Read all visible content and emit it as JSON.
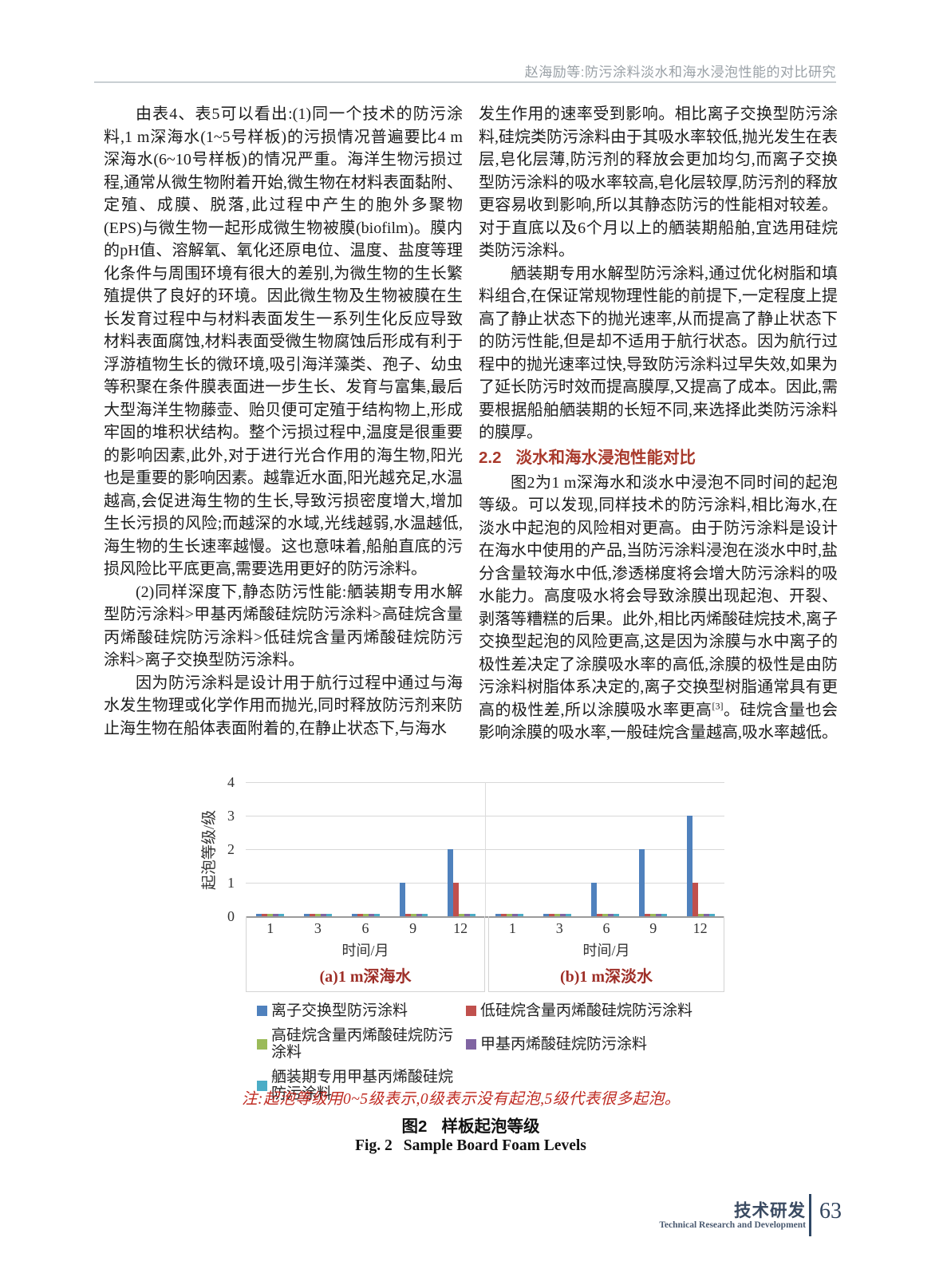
{
  "header": {
    "running_title": "赵海励等:防污涂料淡水和海水浸泡性能的对比研究"
  },
  "columns": {
    "left": {
      "para1": "由表4、表5可以看出:(1)同一个技术的防污涂料,1 m深海水(1~5号样板)的污损情况普遍要比4 m深海水(6~10号样板)的情况严重。海洋生物污损过程,通常从微生物附着开始,微生物在材料表面黏附、定殖、成膜、脱落,此过程中产生的胞外多聚物(EPS)与微生物一起形成微生物被膜(biofilm)。膜内的pH值、溶解氧、氧化还原电位、温度、盐度等理化条件与周围环境有很大的差别,为微生物的生长繁殖提供了良好的环境。因此微生物及生物被膜在生长发育过程中与材料表面发生一系列生化反应导致材料表面腐蚀,材料表面受微生物腐蚀后形成有利于浮游植物生长的微环境,吸引海洋藻类、孢子、幼虫等积聚在条件膜表面进一步生长、发育与富集,最后大型海洋生物藤壶、贻贝便可定殖于结构物上,形成牢固的堆积状结构。整个污损过程中,温度是很重要的影响因素,此外,对于进行光合作用的海生物,阳光也是重要的影响因素。越靠近水面,阳光越充足,水温越高,会促进海生物的生长,导致污损密度增大,增加生长污损的风险;而越深的水域,光线越弱,水温越低,海生物的生长速率越慢。这也意味着,船舶直底的污损风险比平底更高,需要选用更好的防污涂料。",
      "para2": "(2)同样深度下,静态防污性能:舾装期专用水解型防污涂料>甲基丙烯酸硅烷防污涂料>高硅烷含量丙烯酸硅烷防污涂料>低硅烷含量丙烯酸硅烷防污涂料>离子交换型防污涂料。",
      "para3": "因为防污涂料是设计用于航行过程中通过与海水发生物理或化学作用而抛光,同时释放防污剂来防止海生物在船体表面附着的,在静止状态下,与海水"
    },
    "right": {
      "para1": "发生作用的速率受到影响。相比离子交换型防污涂料,硅烷类防污涂料由于其吸水率较低,抛光发生在表层,皂化层薄,防污剂的释放会更加均匀,而离子交换型防污涂料的吸水率较高,皂化层较厚,防污剂的释放更容易收到影响,所以其静态防污的性能相对较差。对于直底以及6个月以上的舾装期船舶,宜选用硅烷类防污涂料。",
      "para2": "舾装期专用水解型防污涂料,通过优化树脂和填料组合,在保证常规物理性能的前提下,一定程度上提高了静止状态下的抛光速率,从而提高了静止状态下的防污性能,但是却不适用于航行状态。因为航行过程中的抛光速率过快,导致防污涂料过早失效,如果为了延长防污时效而提高膜厚,又提高了成本。因此,需要根据船舶舾装期的长短不同,来选择此类防污涂料的膜厚。",
      "section_num": "2.2",
      "section_title": "淡水和海水浸泡性能对比",
      "para3a": "图2为1 m深海水和淡水中浸泡不同时间的起泡等级。可以发现,同样技术的防污涂料,相比海水,在淡水中起泡的风险相对更高。由于防污涂料是设计在海水中使用的产品,当防污涂料浸泡在淡水中时,盐分含量较海水中低,渗透梯度将会增大防污涂料的吸水能力。高度吸水将会导致涂膜出现起泡、开裂、剥落等糟糕的后果。此外,相比丙烯酸硅烷技术,离子交换型起泡的风险更高,这是因为涂膜与水中离子的极性差决定了涂膜吸水率的高低,涂膜的极性是由防污涂料树脂体系决定的,离子交换型树脂通常具有更高的极性差,所以涂膜吸水率更高",
      "para3_ref": "[3]",
      "para3b": "。硅烷含量也会影响涂膜的吸水率,一般硅烷含量越高,吸水率越低。"
    }
  },
  "chart_data": {
    "type": "bar",
    "title": "",
    "ylabel": "起泡等级/级",
    "xlabel": "时间/月",
    "ylim": [
      0,
      4
    ],
    "yticks": [
      0,
      1,
      2,
      3,
      4
    ],
    "grid": true,
    "categories": [
      "1",
      "3",
      "6",
      "9",
      "12"
    ],
    "panels": [
      {
        "label": "(a)1 m深海水",
        "series": [
          {
            "key": "ion-exchange",
            "name": "离子交换型防污涂料",
            "color": "#4F81BD",
            "values": [
              0,
              0,
              0,
              1,
              2
            ]
          },
          {
            "key": "low-silane",
            "name": "低硅烷含量丙烯酸硅烷防污涂料",
            "color": "#C0504D",
            "values": [
              0,
              0,
              0,
              0,
              1
            ]
          },
          {
            "key": "high-silane",
            "name": "高硅烷含量丙烯酸硅烷防污涂料",
            "color": "#9BBB59",
            "values": [
              0,
              0,
              0,
              0,
              0
            ]
          },
          {
            "key": "methyl-acrylic",
            "name": "甲基丙烯酸硅烷防污涂料",
            "color": "#8064A2",
            "values": [
              0,
              0,
              0,
              0,
              0
            ]
          },
          {
            "key": "outfitting",
            "name": "舾装期专用甲基丙烯酸硅烷防污涂料",
            "color": "#4BACC6",
            "values": [
              0,
              0,
              0,
              0,
              0
            ]
          }
        ]
      },
      {
        "label": "(b)1 m深淡水",
        "series": [
          {
            "key": "ion-exchange",
            "name": "离子交换型防污涂料",
            "color": "#4F81BD",
            "values": [
              0,
              0,
              1,
              2,
              3
            ]
          },
          {
            "key": "low-silane",
            "name": "低硅烷含量丙烯酸硅烷防污涂料",
            "color": "#C0504D",
            "values": [
              0,
              0,
              0,
              0,
              1
            ]
          },
          {
            "key": "high-silane",
            "name": "高硅烷含量丙烯酸硅烷防污涂料",
            "color": "#9BBB59",
            "values": [
              0,
              0,
              0,
              0,
              0
            ]
          },
          {
            "key": "methyl-acrylic",
            "name": "甲基丙烯酸硅烷防污涂料",
            "color": "#8064A2",
            "values": [
              0,
              0,
              0,
              0,
              0
            ]
          },
          {
            "key": "outfitting",
            "name": "舾装期专用甲基丙烯酸硅烷防污涂料",
            "color": "#4BACC6",
            "values": [
              0,
              0,
              0,
              0,
              0
            ]
          }
        ]
      }
    ],
    "legend": [
      {
        "key": "ion-exchange",
        "label": "离子交换型防污涂料",
        "color": "#4F81BD"
      },
      {
        "key": "low-silane",
        "label": "低硅烷含量丙烯酸硅烷防污涂料",
        "color": "#C0504D"
      },
      {
        "key": "high-silane",
        "label": "高硅烷含量丙烯酸硅烷防污涂料",
        "color": "#9BBB59"
      },
      {
        "key": "methyl-acrylic",
        "label": "甲基丙烯酸硅烷防污涂料",
        "color": "#8064A2"
      },
      {
        "key": "outfitting",
        "label": "舾装期专用甲基丙烯酸硅烷防污涂料",
        "color": "#4BACC6"
      }
    ],
    "legend_position": "bottom"
  },
  "figure": {
    "note": "注:起泡等级用0~5级表示,0级表示没有起泡,5级代表很多起泡。",
    "caption_zh_num": "图2",
    "caption_zh_text": "样板起泡等级",
    "caption_en_num": "Fig. 2",
    "caption_en_text": "Sample Board Foam Levels"
  },
  "footer": {
    "label_zh": "技术研发",
    "label_en": "Technical Research and Development",
    "page_number": "63"
  }
}
